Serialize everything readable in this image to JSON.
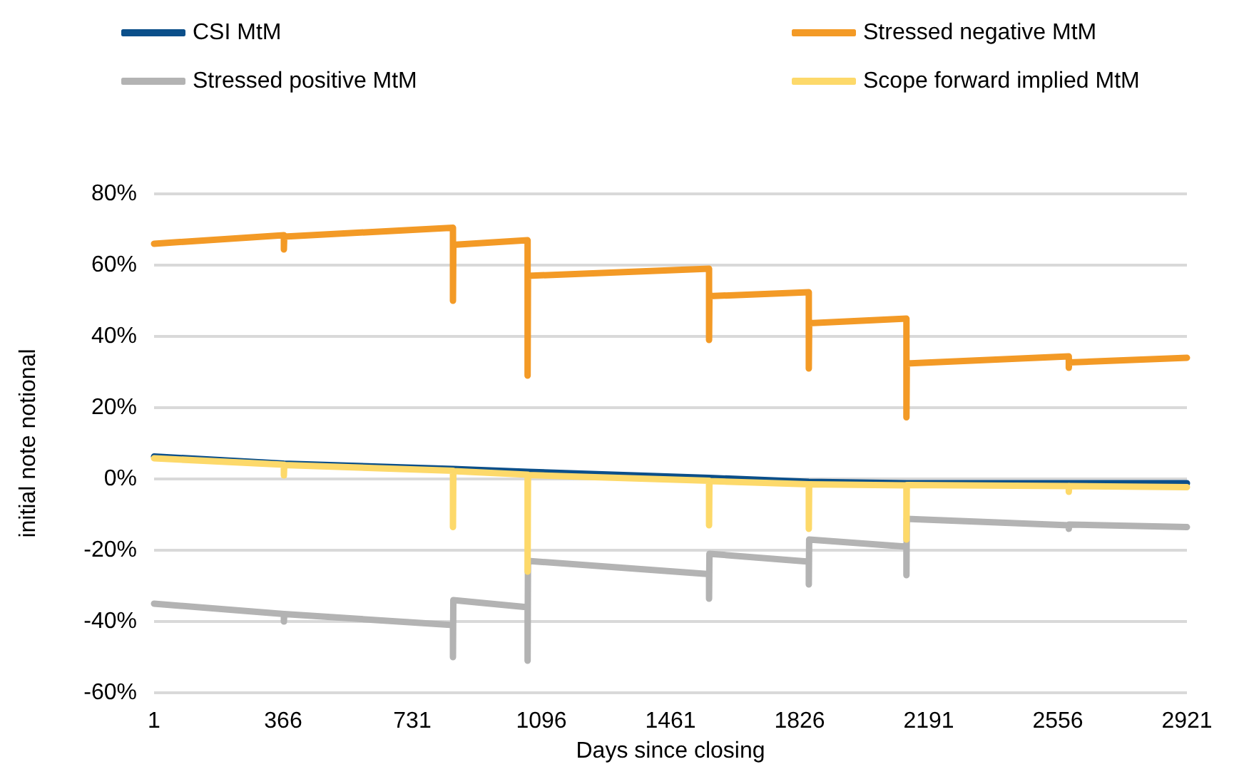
{
  "chart_data": {
    "type": "line",
    "xlabel": "Days since closing",
    "ylabel": "initial note notional",
    "xlim": [
      1,
      2921
    ],
    "xticks": [
      1,
      366,
      731,
      1096,
      1461,
      1826,
      2191,
      2556,
      2921
    ],
    "ylim": [
      -60,
      80
    ],
    "yticks": [
      {
        "value": -60,
        "label": "-60%"
      },
      {
        "value": -40,
        "label": "-40%"
      },
      {
        "value": -20,
        "label": "-20%"
      },
      {
        "value": 0,
        "label": "0%"
      },
      {
        "value": 20,
        "label": "20%"
      },
      {
        "value": 40,
        "label": "40%"
      },
      {
        "value": 60,
        "label": "60%"
      },
      {
        "value": 80,
        "label": "80%"
      }
    ],
    "grid": "y",
    "legend": "top",
    "marker": "none",
    "line_style": "solid",
    "series": [
      {
        "name": "CSI MtM",
        "color": "#0b4f8a",
        "x": [
          1,
          368,
          846,
          1057,
          1570,
          1852,
          2128,
          2921
        ],
        "values": [
          6.3,
          4.3,
          2.8,
          2.0,
          0.3,
          -0.8,
          -1.2,
          -1.2
        ]
      },
      {
        "name": "Stressed negative MtM",
        "color": "#f39a26",
        "x": [
          1,
          368,
          368,
          369,
          846,
          846,
          847,
          1057,
          1057,
          1058,
          1570,
          1570,
          1571,
          1852,
          1852,
          1853,
          2128,
          2128,
          2129,
          2587,
          2587,
          2588,
          2921
        ],
        "values": [
          66,
          68.4,
          64.4,
          68,
          70.5,
          50,
          65.7,
          67,
          29,
          57,
          59,
          39,
          51.3,
          52.4,
          31,
          43.7,
          45,
          17.3,
          32.4,
          34.4,
          31.2,
          32.7,
          34
        ]
      },
      {
        "name": "Stressed positive MtM",
        "color": "#b3b3b3",
        "x": [
          1,
          368,
          368,
          369,
          846,
          846,
          847,
          1057,
          1057,
          1058,
          1570,
          1570,
          1571,
          1852,
          1852,
          1853,
          2128,
          2128,
          2129,
          2587,
          2587,
          2588,
          2921
        ],
        "values": [
          -35,
          -37.9,
          -40,
          -37.9,
          -41,
          -50,
          -34,
          -36,
          -51,
          -23,
          -26.7,
          -33.6,
          -21,
          -23.2,
          -29.6,
          -17,
          -19,
          -27,
          -11.2,
          -13,
          -14,
          -12.8,
          -13.5
        ]
      },
      {
        "name": "Scope forward implied MtM",
        "color": "#fdd96a",
        "x": [
          1,
          368,
          368,
          369,
          846,
          846,
          847,
          1057,
          1057,
          1058,
          1570,
          1570,
          1571,
          1852,
          1852,
          1853,
          2128,
          2128,
          2129,
          2587,
          2587,
          2588,
          2921
        ],
        "values": [
          5.8,
          4,
          1,
          3.9,
          2.3,
          -13.5,
          2.2,
          1.2,
          -26,
          1.1,
          -0.5,
          -13,
          -0.6,
          -1.5,
          -14,
          -1.5,
          -1.8,
          -17,
          -1.7,
          -2,
          -3.6,
          -2,
          -2.3
        ]
      }
    ]
  }
}
